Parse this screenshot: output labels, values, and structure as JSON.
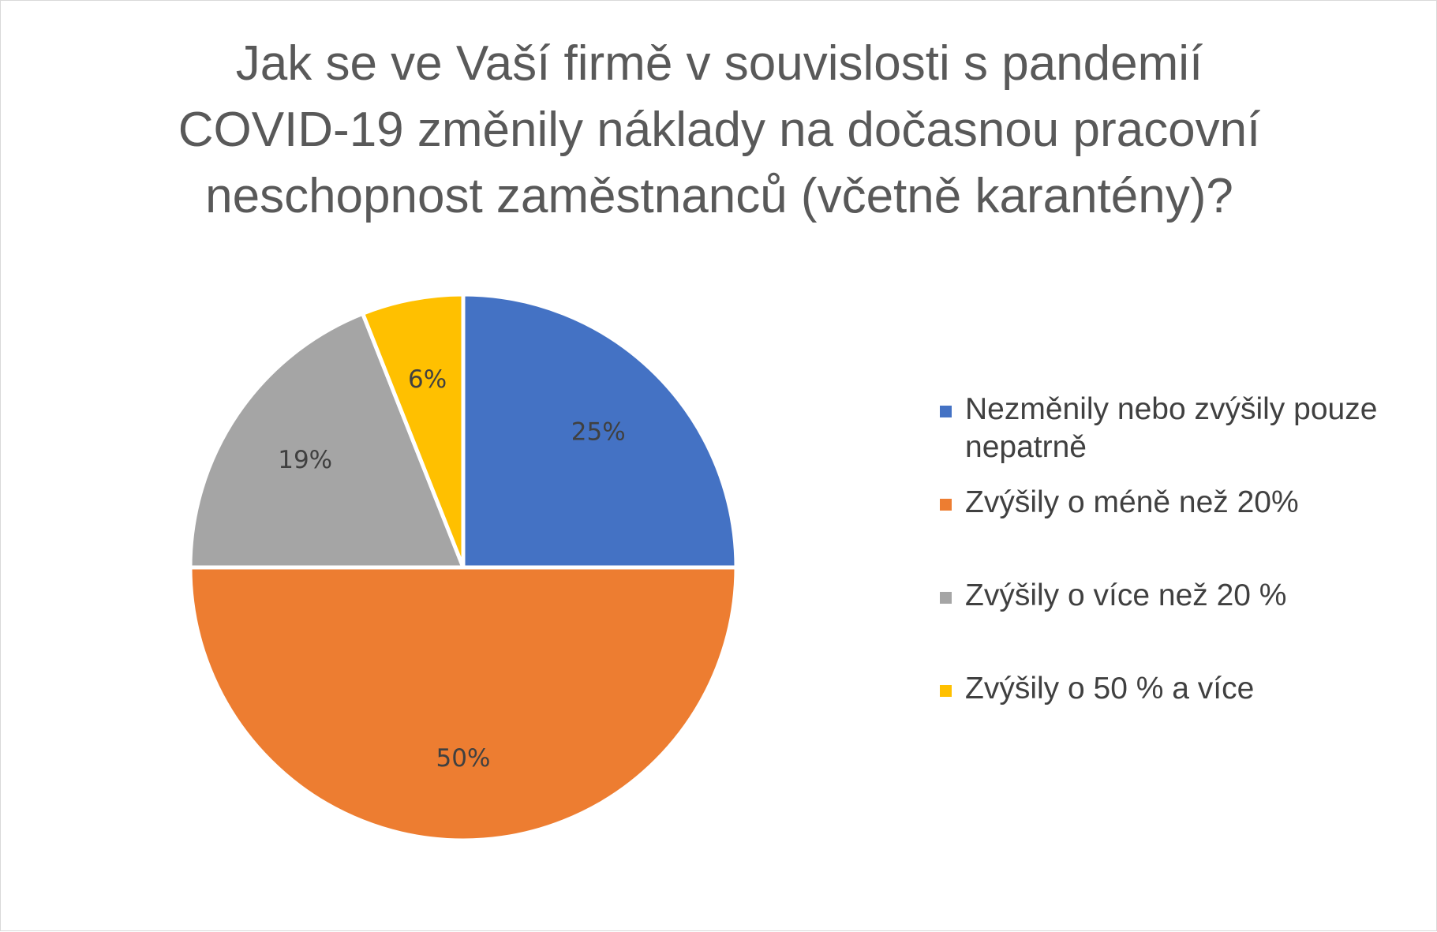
{
  "chart_data": {
    "type": "pie",
    "title_lines": [
      "Jak se ve Vaší firmě v souvislosti s pandemií",
      "COVID-19 změnily náklady na dočasnou pracovní",
      "neschopnost zaměstnanců (včetně karantény)?"
    ],
    "slices": [
      {
        "label": "Nezměnily nebo zvýšily pouze nepatrně",
        "value": 25,
        "display": "25%",
        "color": "#4472C4"
      },
      {
        "label": "Zvýšily o méně než 20%",
        "value": 50,
        "display": "50%",
        "color": "#ED7D31"
      },
      {
        "label": "Zvýšily o více než 20 %",
        "value": 19,
        "display": "19%",
        "color": "#A5A5A5"
      },
      {
        "label": "Zvýšily o 50 % a více",
        "value": 6,
        "display": "6%",
        "color": "#FFC000"
      }
    ],
    "legend_position": "right"
  }
}
